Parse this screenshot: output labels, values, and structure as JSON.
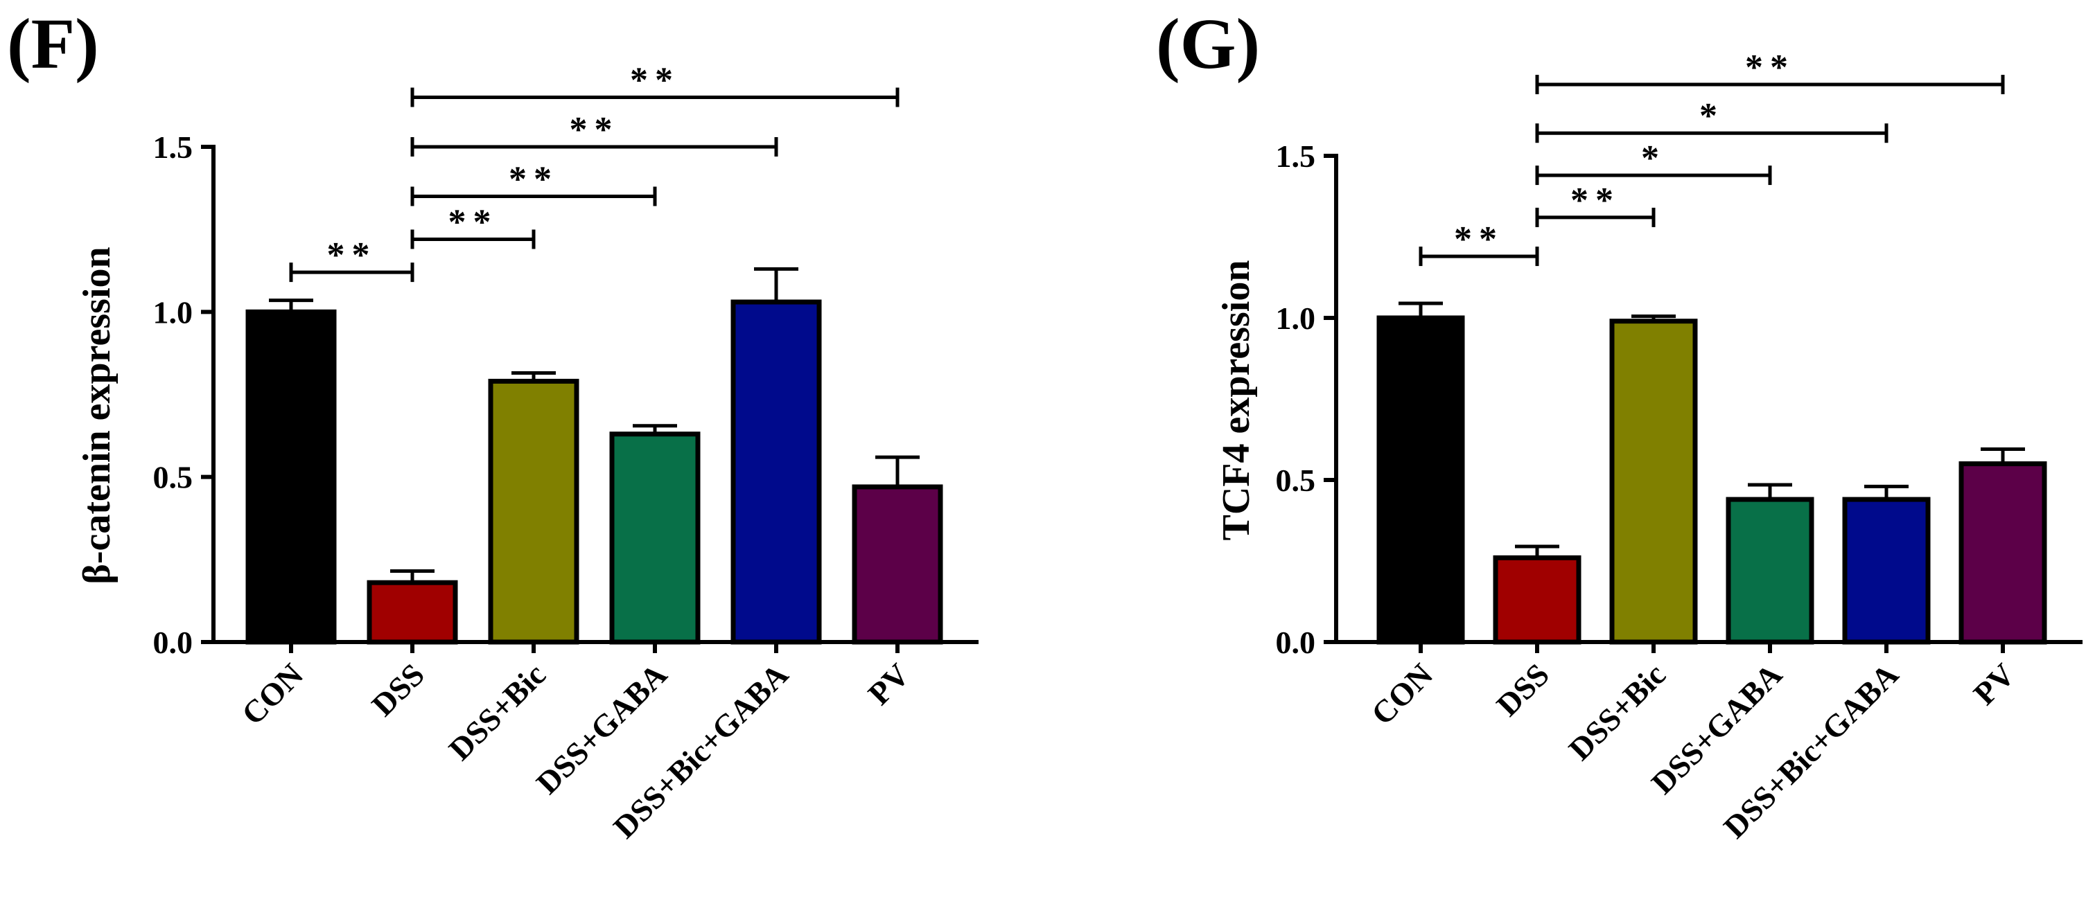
{
  "chart_data": [
    {
      "type": "bar",
      "panel": "(F)",
      "ylabel": "β-catenin expression",
      "ylim": [
        0,
        1.5
      ],
      "yticks": [
        "0.0",
        "0.5",
        "1.0",
        "1.5"
      ],
      "categories": [
        "CON",
        "DSS",
        "DSS+Bic",
        "DSS+GABA",
        "DSS+Bic+GABA",
        "PV"
      ],
      "values": [
        1.0,
        0.18,
        0.79,
        0.63,
        1.03,
        0.47
      ],
      "errors": [
        0.035,
        0.035,
        0.025,
        0.025,
        0.1,
        0.09
      ],
      "colors": [
        "#000000",
        "#a00000",
        "#808000",
        "#087048",
        "#000a8c",
        "#5c0048"
      ],
      "significance": [
        {
          "from": 0,
          "to": 1,
          "label": "**",
          "level": 1.12
        },
        {
          "from": 1,
          "to": 2,
          "label": "**",
          "level": 1.22
        },
        {
          "from": 1,
          "to": 3,
          "label": "**",
          "level": 1.35
        },
        {
          "from": 1,
          "to": 4,
          "label": "**",
          "level": 1.5
        },
        {
          "from": 1,
          "to": 5,
          "label": "**",
          "level": 1.65
        }
      ]
    },
    {
      "type": "bar",
      "panel": "(G)",
      "ylabel": "TCF4 expression",
      "ylim": [
        0,
        1.5
      ],
      "yticks": [
        "0.0",
        "0.5",
        "1.0",
        "1.5"
      ],
      "categories": [
        "CON",
        "DSS",
        "DSS+Bic",
        "DSS+GABA",
        "DSS+Bic+GABA",
        "PV"
      ],
      "values": [
        1.0,
        0.26,
        0.99,
        0.44,
        0.44,
        0.55
      ],
      "errors": [
        0.045,
        0.035,
        0.015,
        0.045,
        0.04,
        0.045
      ],
      "colors": [
        "#000000",
        "#a00000",
        "#808000",
        "#087048",
        "#000a8c",
        "#5c0048"
      ],
      "significance": [
        {
          "from": 0,
          "to": 1,
          "label": "**",
          "level": 1.19
        },
        {
          "from": 1,
          "to": 2,
          "label": "**",
          "level": 1.31
        },
        {
          "from": 1,
          "to": 3,
          "label": "*",
          "level": 1.44
        },
        {
          "from": 1,
          "to": 4,
          "label": "*",
          "level": 1.57
        },
        {
          "from": 1,
          "to": 5,
          "label": "**",
          "level": 1.72
        }
      ]
    }
  ]
}
